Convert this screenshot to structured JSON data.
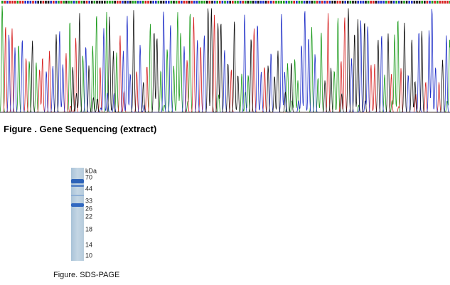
{
  "sequencing": {
    "caption": "Figure . Gene Sequencing (extract)"
  },
  "gel": {
    "caption": "Figure. SDS-PAGE",
    "unit": "kDa",
    "markers": [
      70,
      44,
      33,
      26,
      22,
      18,
      14,
      10
    ]
  }
}
